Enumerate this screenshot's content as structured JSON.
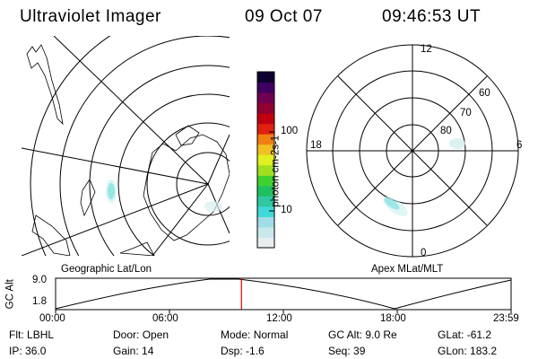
{
  "header": {
    "instrument": "Ultraviolet Imager",
    "date": "09 Oct 07",
    "time": "09:46:53 UT"
  },
  "colorbar": {
    "unit_label": "photon cm-2s-1",
    "ticks": [
      "100",
      "10"
    ],
    "colors": [
      "#e8eef0",
      "#c8e8ec",
      "#a0dde6",
      "#40d8d8",
      "#30c8a0",
      "#20c060",
      "#40d030",
      "#a0e020",
      "#e0f020",
      "#f0c020",
      "#f08010",
      "#e02010",
      "#c00010",
      "#900030",
      "#700050",
      "#400060",
      "#100030"
    ]
  },
  "maps": {
    "left_title": "Geographic Lat/Lon",
    "right_title": "Apex MLat/MLT",
    "polar_mlt_labels": [
      "12",
      "18",
      "6",
      "0"
    ],
    "polar_mlat_labels": [
      "60",
      "70",
      "80"
    ]
  },
  "altitude_plot": {
    "ylabel": "GC Alt",
    "ytick_labels": [
      "9.0",
      "1.8"
    ],
    "xtick_labels": [
      "00:00",
      "06:00",
      "12:00",
      "18:00",
      "23:59"
    ],
    "current_time_marker_fraction": 0.408,
    "marker_color": "#e00000"
  },
  "info_panel": {
    "row1": [
      {
        "key": "Flt:",
        "value": "LBHL"
      },
      {
        "key": "Door:",
        "value": "Open"
      },
      {
        "key": "Mode:",
        "value": "Normal"
      },
      {
        "key": "GC Alt:",
        "value": "9.0 Re"
      },
      {
        "key": "GLat:",
        "value": "-61.2"
      }
    ],
    "row2": [
      {
        "key": "IP:",
        "value": "36.0"
      },
      {
        "key": "Gain:",
        "value": "14"
      },
      {
        "key": "Dsp:",
        "value": "-1.6"
      },
      {
        "key": "Seq:",
        "value": "39"
      },
      {
        "key": "GLon:",
        "value": "183.2"
      }
    ]
  }
}
